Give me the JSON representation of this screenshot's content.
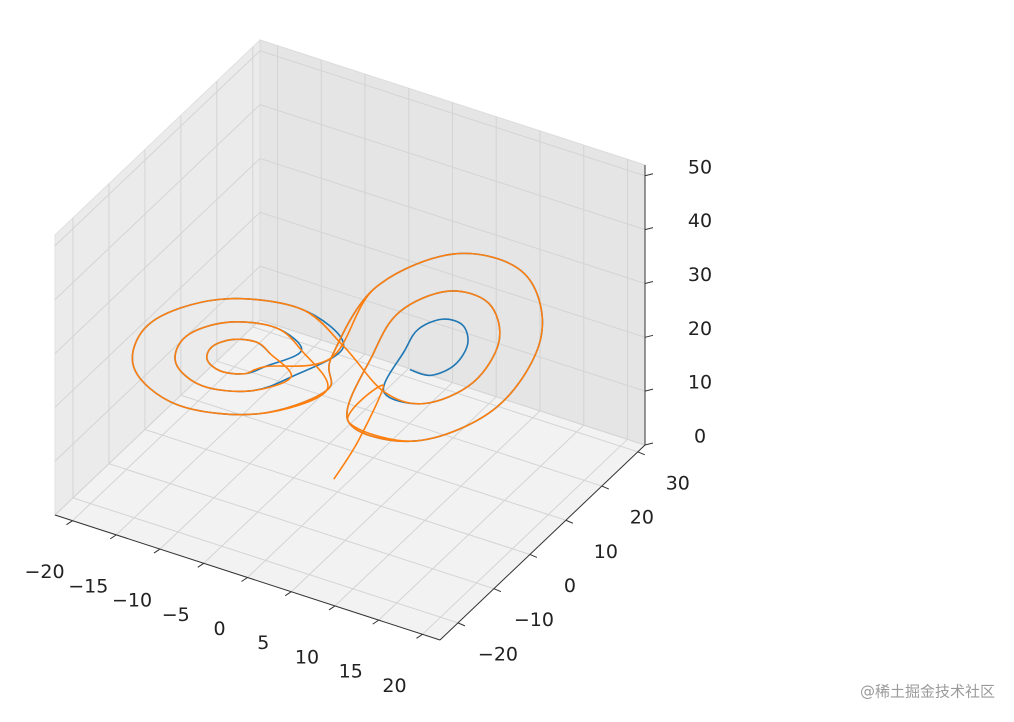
{
  "chart_data": {
    "type": "line3d",
    "xlim": [
      -22,
      22
    ],
    "ylim": [
      -25,
      32
    ],
    "zlim": [
      0,
      52
    ],
    "xticks": [
      {
        "value": -20,
        "label": "−20"
      },
      {
        "value": -15,
        "label": "−15"
      },
      {
        "value": -10,
        "label": "−10"
      },
      {
        "value": -5,
        "label": "−5"
      },
      0,
      5,
      10,
      15,
      20
    ],
    "yticks": [
      {
        "value": -20,
        "label": "−20"
      },
      {
        "value": -10,
        "label": "−10"
      },
      0,
      10,
      20,
      30
    ],
    "zticks": [
      0,
      10,
      20,
      30,
      40,
      50
    ],
    "grid": true,
    "series": [
      {
        "color": "#1f77b4",
        "x": [
          -5.6,
          -6.3,
          -8,
          -9.7,
          -10.4,
          -9.7,
          -8,
          -6.3,
          -3.2,
          -4.6,
          -8,
          -11.4,
          -12.8,
          -11.4,
          -8,
          -4.6,
          0,
          -2.3,
          -8,
          -13.7,
          -16,
          -13.7,
          -8,
          -2.3,
          0,
          2.3,
          8,
          13.7,
          16,
          13.7,
          8,
          2.3,
          3.2,
          4.6,
          8,
          11.4,
          12.8,
          11.4,
          8,
          4.6,
          5.6,
          6.3,
          8,
          9.7,
          10.4,
          9.7,
          8,
          6.3
        ],
        "y": [
          -5.1,
          -7.1,
          -9.6,
          -11.2,
          -10.9,
          -8.9,
          -6.4,
          -4.8,
          -2.2,
          -6.1,
          -11.2,
          -14.3,
          -13.8,
          -9.9,
          -4.8,
          -1.7,
          1.7,
          -4.9,
          -13.3,
          -18.6,
          -17.7,
          -11.1,
          -2.7,
          2.6,
          -1.7,
          4.9,
          13.3,
          18.6,
          17.7,
          11.1,
          2.7,
          -2.6,
          2.2,
          6.1,
          11.2,
          14.3,
          13.8,
          9.9,
          4.8,
          1.7,
          5.1,
          7.1,
          9.6,
          11.2,
          10.9,
          8.9,
          6.4,
          4.8
        ],
        "z": [
          26,
          29,
          30.2,
          29,
          26,
          23,
          21.8,
          23,
          26,
          32,
          34.4,
          32,
          26,
          20,
          17.6,
          20,
          26,
          36,
          40,
          36,
          26,
          16,
          12,
          16,
          26,
          36,
          40,
          36,
          26,
          16,
          12,
          16,
          26,
          32,
          34.4,
          32,
          26,
          20,
          17.6,
          20,
          26,
          29,
          30.2,
          29,
          26,
          23,
          21.8,
          23
        ]
      },
      {
        "color": "#ff7f0e",
        "x": [
          0,
          -2.3,
          -8,
          -13.7,
          -16,
          -13.7,
          -8,
          -2.3,
          -3.2,
          -4.6,
          -8,
          -11.4,
          -12.8,
          -11.4,
          -8,
          -4.6,
          -5.6,
          -6.3,
          -8,
          -9.7,
          -10.4,
          -9.7,
          -8,
          -6.3,
          0,
          2.3,
          8,
          13.7,
          16,
          13.7,
          8,
          2.3,
          3.2,
          4.6,
          8,
          11.4,
          12.8,
          11.4,
          8,
          4.6,
          0,
          -2.3,
          -8,
          -13.7,
          -16,
          -13.7,
          -8,
          -2.3,
          0,
          2.3,
          8,
          13.7,
          16,
          13.7,
          8,
          2.3,
          4,
          2,
          0
        ],
        "y": [
          1.7,
          -4.9,
          -13.3,
          -18.6,
          -17.7,
          -11.1,
          -2.7,
          2.6,
          -2.2,
          -6.1,
          -11.2,
          -14.3,
          -13.8,
          -9.9,
          -4.8,
          -1.7,
          -5.1,
          -7.1,
          -9.6,
          -11.2,
          -10.9,
          -8.9,
          -6.4,
          -4.8,
          -1.7,
          4.9,
          13.3,
          18.6,
          17.7,
          11.1,
          2.7,
          -2.6,
          2.2,
          6.1,
          11.2,
          14.3,
          13.8,
          9.9,
          4.8,
          1.7,
          1.7,
          -4.9,
          -13.3,
          -18.6,
          -17.7,
          -11.1,
          -2.7,
          2.6,
          -1.7,
          4.9,
          13.3,
          18.6,
          17.7,
          11.1,
          2.7,
          -2.6,
          3,
          1,
          -1
        ],
        "z": [
          26,
          36,
          40,
          36,
          26,
          16,
          12,
          16,
          26,
          32,
          34.4,
          32,
          26,
          20,
          17.6,
          20,
          26,
          29,
          30.2,
          29,
          26,
          23,
          21.8,
          23,
          26,
          36,
          40,
          36,
          26,
          16,
          12,
          16,
          26,
          32,
          34.4,
          32,
          26,
          20,
          17.6,
          20,
          26,
          36,
          40,
          36,
          26,
          16,
          12,
          16,
          26,
          36,
          40,
          36,
          26,
          16,
          12,
          16,
          20,
          10,
          3
        ]
      }
    ]
  },
  "watermark": "@稀土掘金技术社区"
}
